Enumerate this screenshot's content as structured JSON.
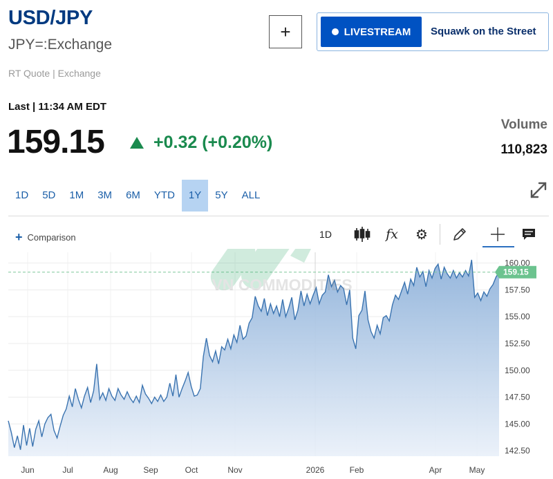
{
  "header": {
    "title": "USD/JPY",
    "subtitle": "JPY=:Exchange",
    "rt_quote": "RT Quote | Exchange",
    "add_label": "+",
    "livestream_label": "LIVESTREAM",
    "show_name": "Squawk on the Street"
  },
  "quote": {
    "last_label": "Last | 11:34 AM EDT",
    "price": "159.15",
    "change": "+0.32 (+0.20%)",
    "volume_label": "Volume",
    "volume_value": "110,823"
  },
  "ranges": [
    "1D",
    "5D",
    "1M",
    "3M",
    "6M",
    "YTD",
    "1Y",
    "5Y",
    "ALL"
  ],
  "active_range": "1Y",
  "toolbar": {
    "comparison_label": "Comparison",
    "interval_label": "1D",
    "fx_label": "fx",
    "icons": [
      "candlestick-icon",
      "fx-icon",
      "gear-icon",
      "pencil-icon",
      "crosshair-icon",
      "comment-icon"
    ]
  },
  "watermark": "VN COMMODITIES",
  "colors": {
    "accent": "#0052c2",
    "up": "#1a8a4e",
    "line": "#3a73b0",
    "price_tag": "#6cc38f"
  },
  "chart_data": {
    "type": "area",
    "x_ticks": [
      "Jun",
      "Jul",
      "Aug",
      "Sep",
      "Oct",
      "Nov",
      "2026",
      "Feb",
      "Apr",
      "May"
    ],
    "y_ticks": [
      "160.00",
      "157.50",
      "155.00",
      "152.50",
      "150.00",
      "147.50",
      "145.00",
      "142.50"
    ],
    "ylim": [
      142.0,
      161.0
    ],
    "last_value": 159.15,
    "last_value_label": "159.15",
    "values": [
      145.3,
      144.2,
      142.8,
      143.9,
      142.6,
      144.9,
      143.0,
      144.6,
      142.9,
      144.5,
      145.3,
      143.8,
      145.0,
      145.6,
      145.9,
      144.4,
      143.7,
      144.8,
      145.8,
      146.4,
      147.6,
      146.6,
      148.3,
      147.3,
      146.5,
      147.6,
      148.4,
      147.0,
      148.1,
      150.6,
      147.3,
      147.9,
      147.2,
      148.3,
      147.6,
      147.2,
      148.3,
      147.7,
      147.3,
      148.0,
      147.4,
      147.0,
      147.6,
      147.0,
      148.6,
      147.8,
      147.4,
      146.9,
      147.5,
      147.1,
      147.7,
      147.1,
      147.5,
      148.8,
      147.6,
      149.6,
      147.5,
      148.3,
      149.0,
      149.8,
      148.5,
      147.6,
      147.7,
      148.3,
      151.3,
      153.0,
      151.4,
      150.8,
      151.8,
      150.6,
      152.2,
      151.9,
      152.9,
      152.0,
      153.3,
      152.6,
      154.2,
      152.9,
      153.2,
      154.4,
      154.9,
      156.9,
      156.0,
      155.5,
      156.7,
      155.1,
      156.2,
      155.3,
      156.0,
      155.0,
      156.6,
      155.0,
      155.8,
      156.8,
      154.7,
      155.6,
      157.4,
      156.0,
      157.1,
      156.2,
      157.0,
      157.7,
      156.2,
      157.0,
      157.3,
      158.9,
      157.8,
      158.4,
      157.3,
      157.9,
      157.6,
      156.1,
      157.5,
      153.0,
      152.0,
      155.1,
      155.6,
      157.4,
      154.7,
      153.6,
      153.0,
      154.2,
      153.4,
      154.9,
      155.1,
      154.6,
      156.1,
      157.0,
      156.6,
      157.4,
      158.2,
      157.1,
      158.5,
      157.9,
      159.6,
      158.7,
      159.2,
      157.8,
      159.3,
      158.6,
      159.5,
      159.9,
      158.5,
      159.6,
      159.0,
      158.6,
      159.3,
      158.6,
      159.1,
      158.7,
      159.3,
      158.8,
      160.3,
      156.8,
      157.2,
      156.5,
      157.3,
      156.9,
      157.6,
      158.0,
      158.7,
      159.15
    ]
  }
}
